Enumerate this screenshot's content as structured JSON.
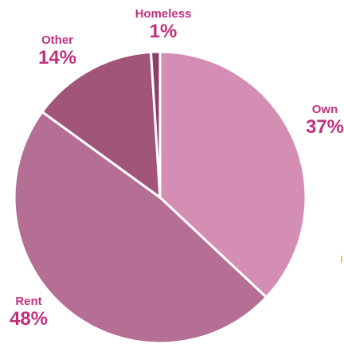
{
  "chart_data": {
    "type": "pie",
    "title": "",
    "slices": [
      {
        "label": "Own",
        "value": 37,
        "percent_label": "37%",
        "color": "#d48db3"
      },
      {
        "label": "Rent",
        "value": 48,
        "percent_label": "48%",
        "color": "#b56f95"
      },
      {
        "label": "Other",
        "value": 14,
        "percent_label": "14%",
        "color": "#a05579"
      },
      {
        "label": "Homeless",
        "value": 1,
        "percent_label": "1%",
        "color": "#8e3f68"
      }
    ],
    "start_angle_deg": 0,
    "direction": "clockwise",
    "slice_border_color": "#ffffff",
    "label_color": "#c0307f",
    "legend": "none"
  }
}
